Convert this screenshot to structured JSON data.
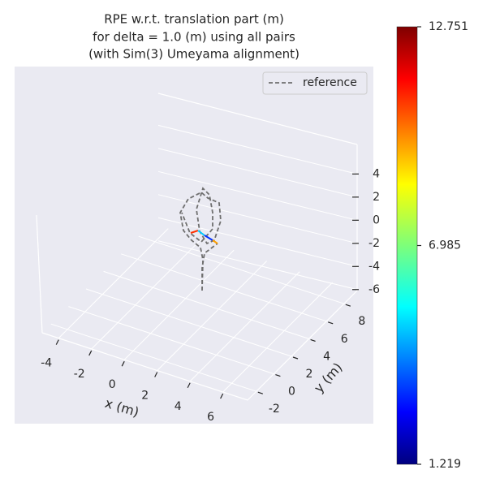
{
  "chart_data": {
    "type": "line3d",
    "title": [
      "RPE w.r.t. translation part (m)",
      "for delta = 1.0 (m) using all pairs",
      "(with Sim(3) Umeyama alignment)"
    ],
    "xlabel": "x (m)",
    "ylabel": "y (m)",
    "xlim": [
      -5,
      7.5
    ],
    "xticks": [
      -4,
      -2,
      0,
      2,
      4,
      6
    ],
    "ylim": [
      -3,
      9.5
    ],
    "yticks": [
      -2,
      0,
      2,
      4,
      6,
      8
    ],
    "zlim": [
      -7,
      5.5
    ],
    "zticks": [
      4,
      2,
      0,
      -2,
      -4,
      -6
    ],
    "legend": [
      "reference"
    ],
    "colorbar": {
      "clim": [
        1.219,
        12.751
      ],
      "ticks": [
        12.751,
        6.985,
        1.219
      ]
    },
    "grid": true
  }
}
